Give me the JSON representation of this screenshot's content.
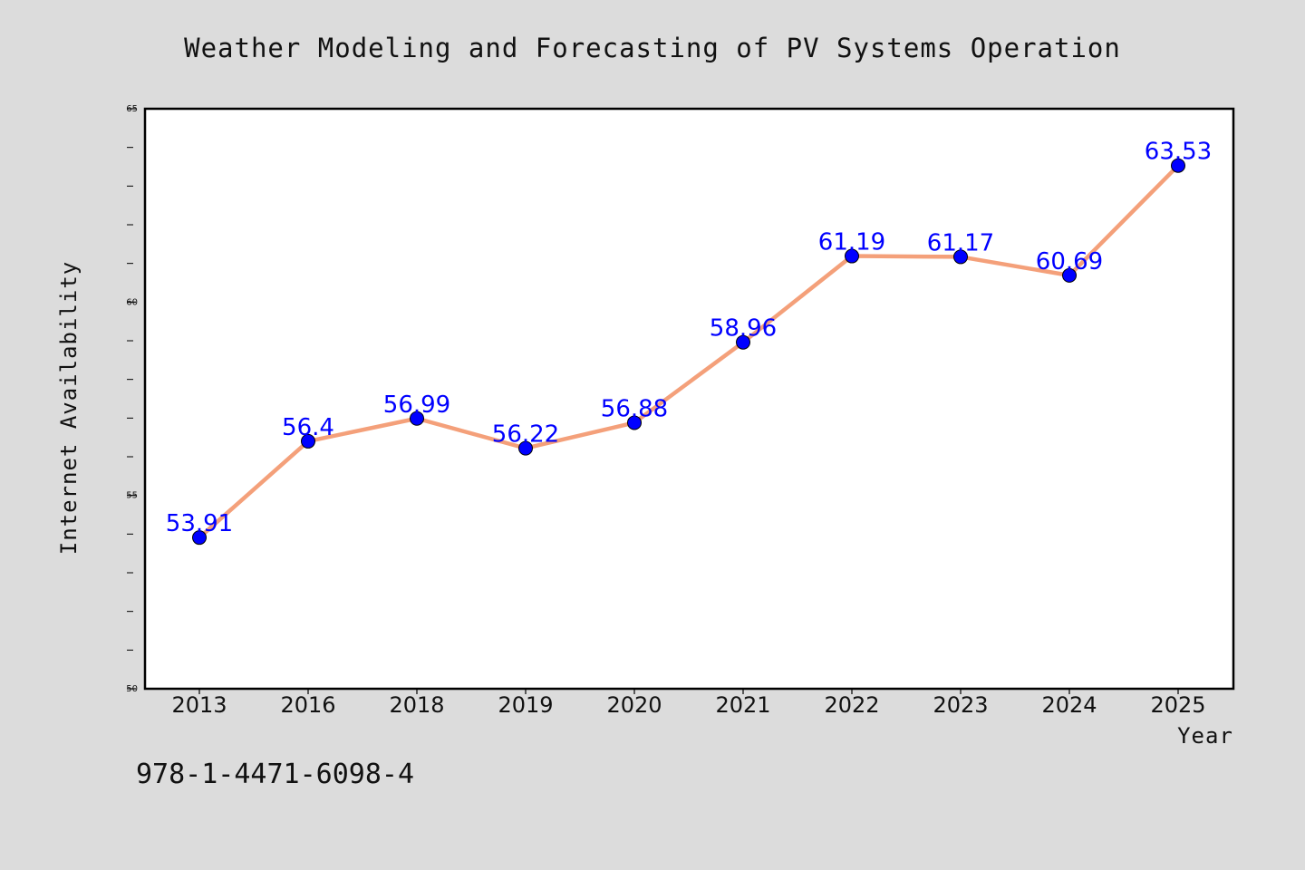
{
  "page": {
    "isbn": "978-1-4471-6098-4"
  },
  "chart_data": {
    "type": "line",
    "title": "Weather Modeling and Forecasting of PV Systems Operation",
    "xlabel": "Year",
    "ylabel": "Internet Availability",
    "categories": [
      "2013",
      "2016",
      "2018",
      "2019",
      "2020",
      "2021",
      "2022",
      "2023",
      "2024",
      "2025"
    ],
    "series": [
      {
        "values": [
          53.91,
          56.4,
          56.99,
          56.22,
          56.88,
          58.96,
          61.19,
          61.17,
          60.69,
          63.53
        ],
        "data_labels": [
          "53.91",
          "56.4",
          "56.99",
          "56.22",
          "56.88",
          "58.96",
          "61.19",
          "61.17",
          "60.69",
          "63.53"
        ],
        "line_color": "#f4a07a",
        "marker_color": "#0000ff"
      }
    ],
    "ylim": [
      50,
      65
    ],
    "yticks": [
      50,
      55,
      60,
      65
    ],
    "ytick_labels": [
      "50",
      "55",
      "60",
      "65"
    ],
    "grid": false,
    "legend": "none",
    "colors": {
      "background": "#dcdcdc",
      "plot_background": "#ffffff",
      "data_label": "#0000ff"
    }
  }
}
